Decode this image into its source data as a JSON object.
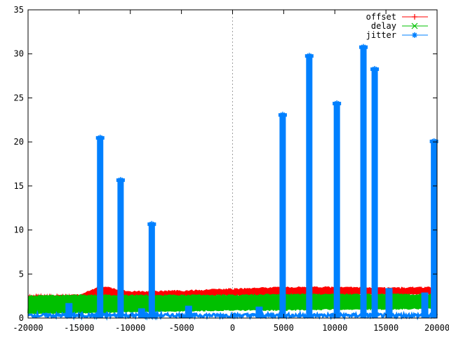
{
  "chart_data": {
    "type": "line",
    "title": "",
    "xlabel": "",
    "ylabel": "",
    "xlim": [
      -20000,
      20000
    ],
    "ylim": [
      0,
      35
    ],
    "x_ticks": [
      -20000,
      -15000,
      -10000,
      -5000,
      0,
      5000,
      10000,
      15000,
      20000
    ],
    "x_tick_labels": [
      "-20000",
      "-15000",
      "-10000",
      "-5000",
      "0",
      "5000",
      "10000",
      "15000",
      "20000"
    ],
    "y_ticks": [
      0,
      5,
      10,
      15,
      20,
      25,
      30,
      35
    ],
    "y_tick_labels": [
      "0",
      "5",
      "10",
      "15",
      "20",
      "25",
      "30",
      "35"
    ],
    "zero_line": true,
    "grid": false,
    "legend_position": "top-right",
    "series": [
      {
        "name": "offset",
        "color": "#ff0000",
        "marker": "plus",
        "x": [
          -20000,
          -15000,
          -12900,
          -10000,
          -5000,
          0,
          5000,
          10000,
          15000,
          20000
        ],
        "low": [
          2.2,
          2.2,
          2.2,
          2.3,
          2.4,
          2.5,
          2.5,
          2.6,
          2.6,
          2.6
        ],
        "high": [
          2.6,
          2.7,
          3.7,
          3.1,
          3.2,
          3.4,
          3.6,
          3.6,
          3.5,
          3.6
        ]
      },
      {
        "name": "delay",
        "color": "#00c000",
        "marker": "cross",
        "x": [
          -20000,
          -15000,
          -10000,
          -5000,
          0,
          5000,
          10000,
          15000,
          20000
        ],
        "low": [
          0.4,
          0.5,
          0.6,
          0.7,
          0.8,
          0.8,
          0.9,
          0.9,
          1.0
        ],
        "high": [
          2.6,
          2.7,
          2.7,
          2.7,
          2.7,
          2.8,
          2.8,
          2.8,
          2.8
        ]
      },
      {
        "name": "jitter",
        "color": "#0080ff",
        "marker": "star",
        "baseline_x": [
          -20000,
          20000
        ],
        "baseline_y": [
          0.3,
          0.3
        ],
        "spikes": [
          {
            "x": -12950,
            "y": 20.5
          },
          {
            "x": -10950,
            "y": 15.7
          },
          {
            "x": -7900,
            "y": 10.7
          },
          {
            "x": 4900,
            "y": 23.1
          },
          {
            "x": 7500,
            "y": 29.8
          },
          {
            "x": 10200,
            "y": 24.4
          },
          {
            "x": 12800,
            "y": 30.8
          },
          {
            "x": 13900,
            "y": 28.3
          },
          {
            "x": 19700,
            "y": 20.1
          }
        ],
        "small_spikes": [
          {
            "x": -16000,
            "y": 1.7
          },
          {
            "x": -8900,
            "y": 1.1
          },
          {
            "x": -4300,
            "y": 1.4
          },
          {
            "x": 2600,
            "y": 1.3
          },
          {
            "x": 15300,
            "y": 3.4
          },
          {
            "x": 18800,
            "y": 2.9
          }
        ]
      }
    ]
  }
}
